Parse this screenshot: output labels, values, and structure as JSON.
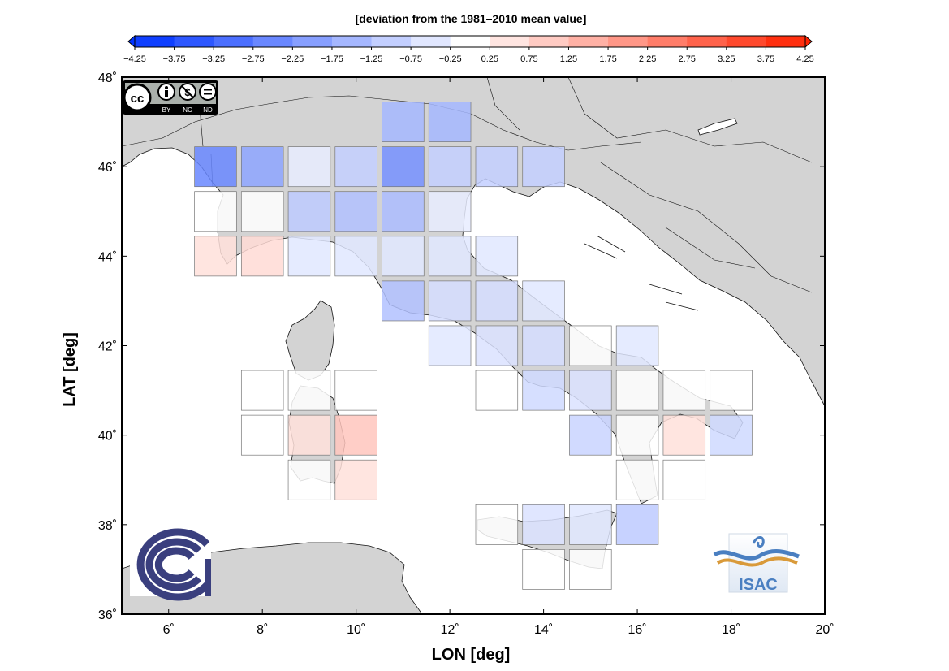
{
  "colorbar": {
    "title": "[deviation from the 1981–2010 mean value]",
    "min": -4.25,
    "max": 4.25,
    "step": 0.5,
    "tick_labels": [
      "−4.25",
      "−3.75",
      "−3.25",
      "−2.75",
      "−2.25",
      "−1.75",
      "−1.25",
      "−0.75",
      "−0.25",
      "0.25",
      "0.75",
      "1.25",
      "1.75",
      "2.25",
      "2.75",
      "3.25",
      "3.75",
      "4.25"
    ],
    "negative_color": "#0033ff",
    "positive_color": "#ff2200",
    "neutral_color": "#ffffff"
  },
  "map": {
    "xlabel": "LON [deg]",
    "ylabel": "LAT [deg]",
    "lon_range": [
      5,
      20
    ],
    "lat_range": [
      36,
      48
    ],
    "x_tick_labels": [
      "6˚",
      "8˚",
      "10˚",
      "12˚",
      "14˚",
      "16˚",
      "18˚",
      "20˚"
    ],
    "y_tick_labels": [
      "36˚",
      "38˚",
      "40˚",
      "42˚",
      "44˚",
      "46˚",
      "48˚"
    ],
    "x_ticks": [
      6,
      8,
      10,
      12,
      14,
      16,
      18,
      20
    ],
    "y_ticks": [
      36,
      38,
      40,
      42,
      44,
      46,
      48
    ],
    "land_color": "#d3d3d3",
    "sea_color": "#ffffff",
    "cell_size_deg": 1.0
  },
  "chart_data": {
    "type": "heatmap",
    "cells": [
      {
        "lon": 11,
        "lat": 47,
        "value": -1.5
      },
      {
        "lon": 12,
        "lat": 47,
        "value": -1.5
      },
      {
        "lon": 7,
        "lat": 46,
        "value": -2.5
      },
      {
        "lon": 8,
        "lat": 46,
        "value": -1.9
      },
      {
        "lon": 9,
        "lat": 46,
        "value": -0.4
      },
      {
        "lon": 10,
        "lat": 46,
        "value": -1.0
      },
      {
        "lon": 11,
        "lat": 46,
        "value": -2.3
      },
      {
        "lon": 12,
        "lat": 46,
        "value": -1.0
      },
      {
        "lon": 13,
        "lat": 46,
        "value": -1.0
      },
      {
        "lon": 14,
        "lat": 46,
        "value": -1.0
      },
      {
        "lon": 7,
        "lat": 45,
        "value": 0.0
      },
      {
        "lon": 8,
        "lat": 45,
        "value": 0.0
      },
      {
        "lon": 9,
        "lat": 45,
        "value": -1.1
      },
      {
        "lon": 10,
        "lat": 45,
        "value": -1.3
      },
      {
        "lon": 11,
        "lat": 45,
        "value": -1.4
      },
      {
        "lon": 12,
        "lat": 45,
        "value": -0.4
      },
      {
        "lon": 7,
        "lat": 44,
        "value": 0.6
      },
      {
        "lon": 8,
        "lat": 44,
        "value": 0.7
      },
      {
        "lon": 9,
        "lat": 44,
        "value": -0.5
      },
      {
        "lon": 10,
        "lat": 44,
        "value": -0.5
      },
      {
        "lon": 11,
        "lat": 44,
        "value": -0.5
      },
      {
        "lon": 12,
        "lat": 44,
        "value": -0.5
      },
      {
        "lon": 13,
        "lat": 44,
        "value": -0.5
      },
      {
        "lon": 11,
        "lat": 43,
        "value": -1.3
      },
      {
        "lon": 12,
        "lat": 43,
        "value": -0.7
      },
      {
        "lon": 13,
        "lat": 43,
        "value": -0.7
      },
      {
        "lon": 14,
        "lat": 43,
        "value": -0.5
      },
      {
        "lon": 12,
        "lat": 42,
        "value": -0.5
      },
      {
        "lon": 13,
        "lat": 42,
        "value": -0.6
      },
      {
        "lon": 14,
        "lat": 42,
        "value": -0.7
      },
      {
        "lon": 15,
        "lat": 42,
        "value": 0.0
      },
      {
        "lon": 16,
        "lat": 42,
        "value": -0.5
      },
      {
        "lon": 8,
        "lat": 41,
        "value": 0.0
      },
      {
        "lon": 9,
        "lat": 41,
        "value": 0.0
      },
      {
        "lon": 10,
        "lat": 41,
        "value": 0.0
      },
      {
        "lon": 13,
        "lat": 41,
        "value": 0.0
      },
      {
        "lon": 14,
        "lat": 41,
        "value": -0.8
      },
      {
        "lon": 15,
        "lat": 41,
        "value": -0.6
      },
      {
        "lon": 16,
        "lat": 41,
        "value": 0.0
      },
      {
        "lon": 17,
        "lat": 41,
        "value": 0.0
      },
      {
        "lon": 18,
        "lat": 41,
        "value": 0.0
      },
      {
        "lon": 8,
        "lat": 40,
        "value": 0.0
      },
      {
        "lon": 9,
        "lat": 40,
        "value": 0.6
      },
      {
        "lon": 10,
        "lat": 40,
        "value": 1.1
      },
      {
        "lon": 15,
        "lat": 40,
        "value": -0.9
      },
      {
        "lon": 16,
        "lat": 40,
        "value": 0.0
      },
      {
        "lon": 17,
        "lat": 40,
        "value": 0.6
      },
      {
        "lon": 18,
        "lat": 40,
        "value": -0.8
      },
      {
        "lon": 9,
        "lat": 39,
        "value": 0.0
      },
      {
        "lon": 10,
        "lat": 39,
        "value": 0.6
      },
      {
        "lon": 16,
        "lat": 39,
        "value": 0.0
      },
      {
        "lon": 17,
        "lat": 39,
        "value": 0.0
      },
      {
        "lon": 13,
        "lat": 38,
        "value": 0.0
      },
      {
        "lon": 14,
        "lat": 38,
        "value": -0.6
      },
      {
        "lon": 15,
        "lat": 38,
        "value": -0.5
      },
      {
        "lon": 16,
        "lat": 38,
        "value": -1.1
      },
      {
        "lon": 14,
        "lat": 37,
        "value": 0.0
      },
      {
        "lon": 15,
        "lat": 37,
        "value": 0.0
      }
    ]
  },
  "logos": {
    "license_badge": "cc-by-nc-nd-icon",
    "license_badge_text": "cc",
    "license_badge_terms": [
      "BY",
      "NC",
      "ND"
    ],
    "institution_left": "cnr-logo-icon",
    "institution_right": "isac-logo-icon",
    "institution_right_text": "ISAC",
    "cnr_color": "#3a3f7e",
    "isac_blue": "#4a7fc1",
    "isac_orange": "#d99a3a"
  }
}
